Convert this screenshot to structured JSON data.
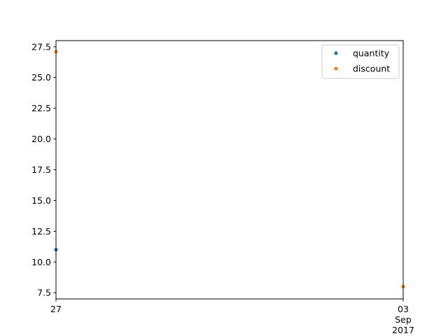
{
  "chart_data": {
    "type": "scatter",
    "title": "",
    "xlabel": "",
    "ylabel": "",
    "xlim": [
      "2017-08-27",
      "2017-09-03"
    ],
    "ylim": [
      7.0,
      28.0
    ],
    "x_ticks": [
      {
        "date": "2017-08-27",
        "lines": [
          "27"
        ]
      },
      {
        "date": "2017-09-03",
        "lines": [
          "03",
          "Sep",
          "2017"
        ]
      }
    ],
    "y_ticks": [
      7.5,
      10.0,
      12.5,
      15.0,
      17.5,
      20.0,
      22.5,
      25.0,
      27.5
    ],
    "y_tick_labels": [
      "7.5",
      "10.0",
      "12.5",
      "15.0",
      "17.5",
      "20.0",
      "22.5",
      "25.0",
      "27.5"
    ],
    "grid": false,
    "legend_position": "top-right",
    "series": [
      {
        "name": "quantity",
        "color": "#1f77b4",
        "points": [
          {
            "x": "2017-08-27",
            "y": 11.0
          },
          {
            "x": "2017-09-03",
            "y": 8.0
          }
        ]
      },
      {
        "name": "discount",
        "color": "#ff7f0e",
        "points": [
          {
            "x": "2017-08-27",
            "y": 27.1
          },
          {
            "x": "2017-09-03",
            "y": 8.0
          }
        ]
      }
    ]
  }
}
